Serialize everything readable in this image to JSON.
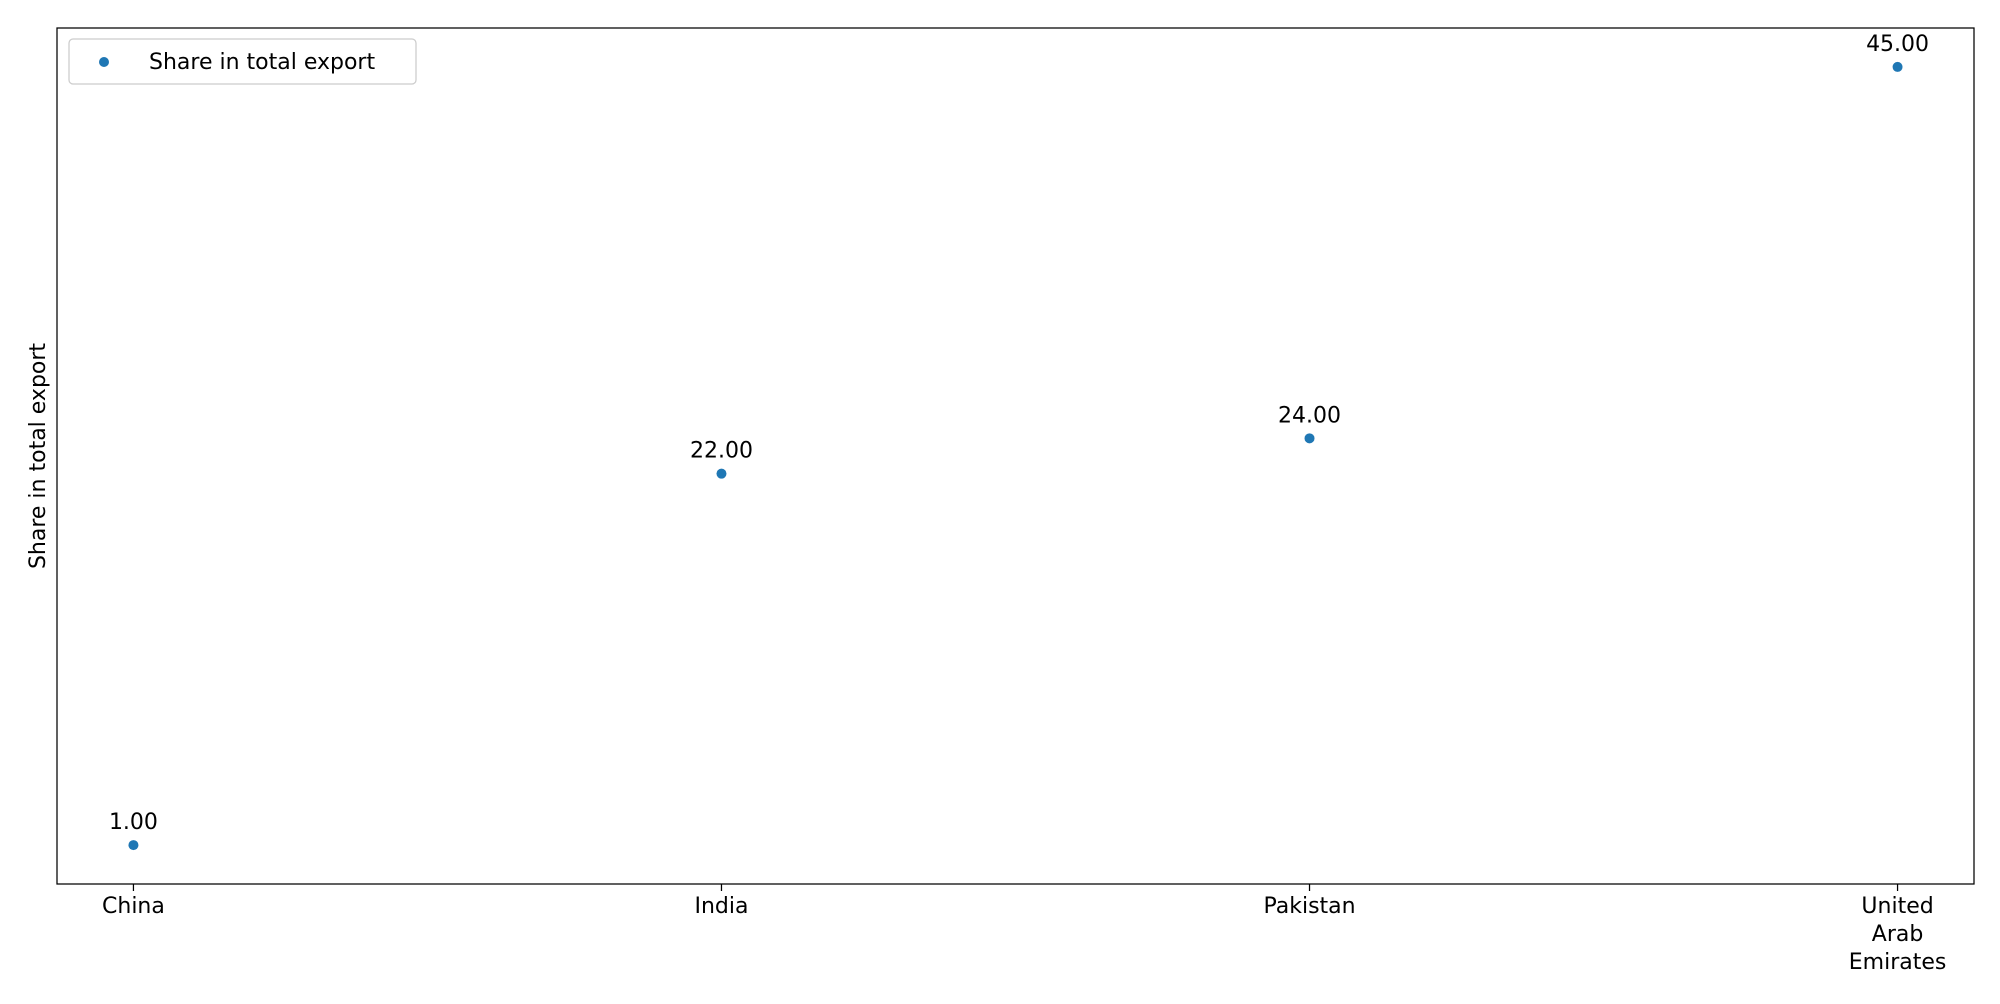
{
  "chart_data": {
    "type": "scatter",
    "categories": [
      "China",
      "India",
      "Pakistan",
      "United Arab Emirates"
    ],
    "category_display_lines": [
      [
        "China"
      ],
      [
        "India"
      ],
      [
        "Pakistan"
      ],
      [
        "United",
        "Arab",
        "Emirates"
      ]
    ],
    "series": [
      {
        "name": "Share in total export",
        "values": [
          1,
          22,
          24,
          45
        ],
        "data_labels": [
          "1.00",
          "22.00",
          "24.00",
          "45.00"
        ],
        "color": "#1f77b4"
      }
    ],
    "title": "",
    "xlabel": "",
    "ylabel": "Share in total export",
    "ylim": [
      -1.2,
      47.2
    ],
    "y_ticks_shown": false,
    "grid": false,
    "legend_position": "top-left"
  }
}
